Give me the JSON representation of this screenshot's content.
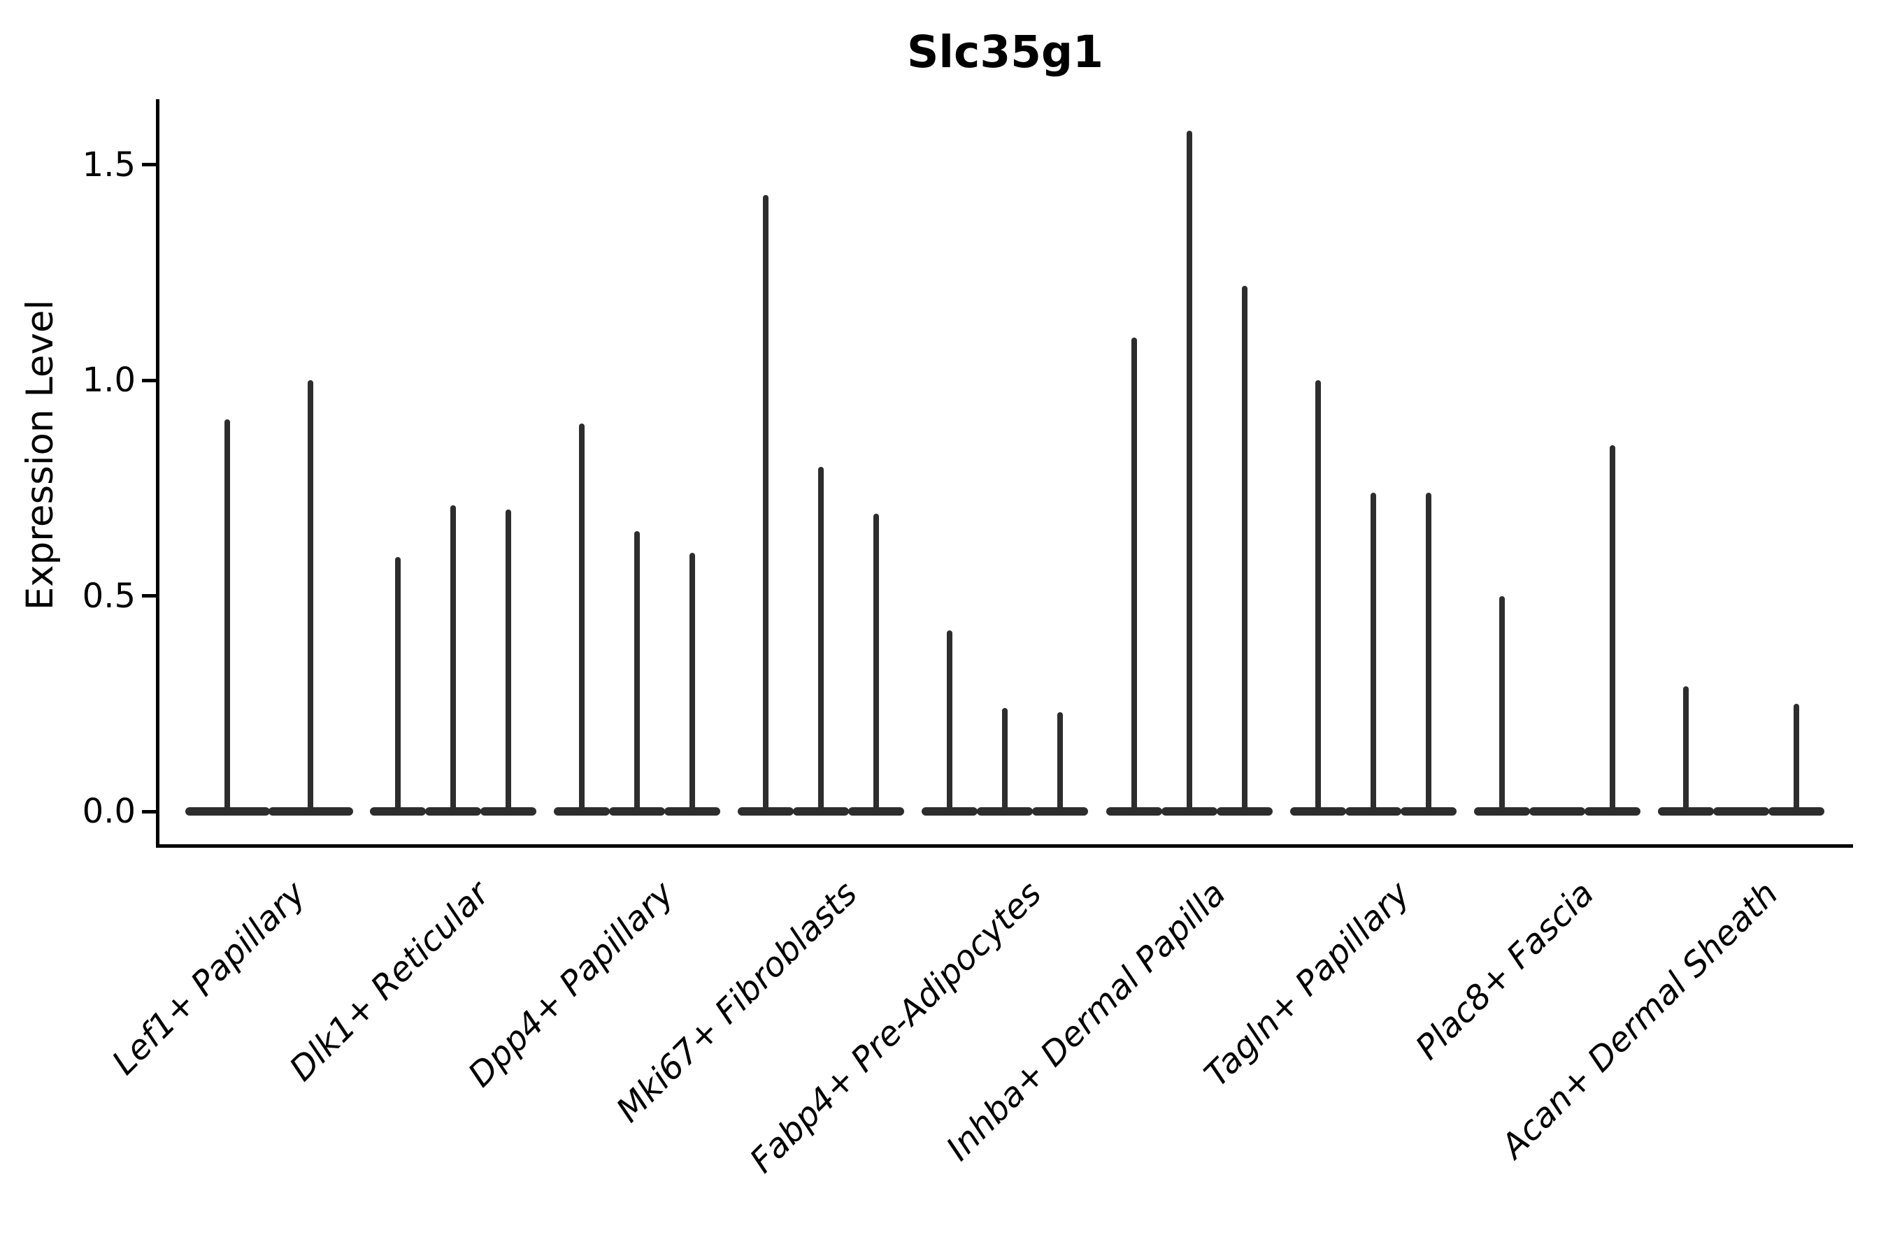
{
  "chart_data": {
    "type": "violin",
    "title": "Slc35g1",
    "ylabel": "Expression Level",
    "xlabel": "",
    "ylim": [
      -0.08,
      1.65
    ],
    "yticks": [
      0,
      0.5,
      1.0,
      1.5
    ],
    "ytick_labels": [
      "0.0",
      "0.5",
      "1.0",
      "1.5"
    ],
    "grid": false,
    "legend": "none",
    "categories": [
      "Lef1+ Papillary",
      "Dlk1+ Reticular",
      "Dpp4+ Papillary",
      "Mki67+ Fibroblasts",
      "Fabp4+ Pre-Adipocytes",
      "Inhba+ Dermal Papilla",
      "Tagln+ Papillary",
      "Plac8+ Fascia",
      "Acan+ Dermal Sheath"
    ],
    "series": [
      {
        "category": "Lef1+ Papillary",
        "violin_max_expression": [
          0.91,
          1.0
        ]
      },
      {
        "category": "Dlk1+ Reticular",
        "violin_max_expression": [
          0.59,
          0.71,
          0.7
        ]
      },
      {
        "category": "Dpp4+ Papillary",
        "violin_max_expression": [
          0.9,
          0.65,
          0.6
        ]
      },
      {
        "category": "Mki67+ Fibroblasts",
        "violin_max_expression": [
          1.43,
          0.8,
          0.69
        ]
      },
      {
        "category": "Fabp4+ Pre-Adipocytes",
        "violin_max_expression": [
          0.42,
          0.24,
          0.23
        ]
      },
      {
        "category": "Inhba+ Dermal Papilla",
        "violin_max_expression": [
          1.1,
          1.58,
          1.22
        ]
      },
      {
        "category": "Tagln+ Papillary",
        "violin_max_expression": [
          1.0,
          0.74,
          0.74
        ]
      },
      {
        "category": "Plac8+ Fascia",
        "violin_max_expression": [
          0.5,
          0.0,
          0.85
        ]
      },
      {
        "category": "Acan+ Dermal Sheath",
        "violin_max_expression": [
          0.29,
          0.0,
          0.25
        ]
      }
    ],
    "violin_color": "#2d2d2d",
    "axis_color": "#000000"
  }
}
